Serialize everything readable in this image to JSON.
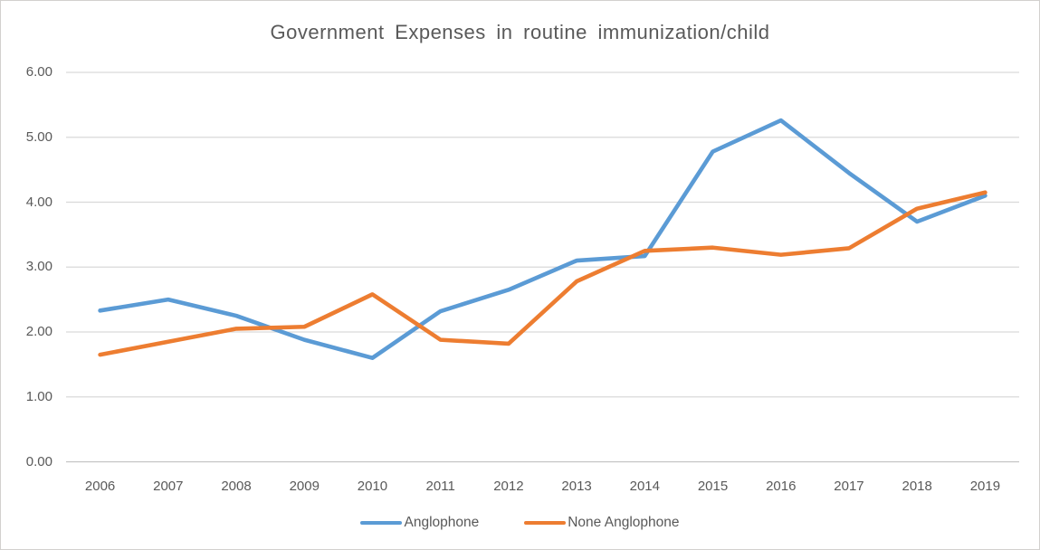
{
  "chart_data": {
    "type": "line",
    "title": "Government Expenses in routine immunization/child",
    "x": [
      "2006",
      "2007",
      "2008",
      "2009",
      "2010",
      "2011",
      "2012",
      "2013",
      "2014",
      "2015",
      "2016",
      "2017",
      "2018",
      "2019"
    ],
    "series": [
      {
        "name": "Anglophone",
        "color": "#5B9BD5",
        "values": [
          2.33,
          2.5,
          2.25,
          1.88,
          1.6,
          2.32,
          2.65,
          3.1,
          3.17,
          4.78,
          5.26,
          4.45,
          3.7,
          4.1
        ]
      },
      {
        "name": "None Anglophone",
        "color": "#ED7D31",
        "values": [
          1.65,
          1.85,
          2.05,
          2.08,
          2.58,
          1.88,
          1.82,
          2.78,
          3.25,
          3.3,
          3.19,
          3.29,
          3.9,
          4.15
        ]
      }
    ],
    "ylim": [
      0,
      6
    ],
    "y_ticks": [
      "0.00",
      "1.00",
      "2.00",
      "3.00",
      "4.00",
      "5.00",
      "6.00"
    ],
    "grid": true,
    "legend_position": "bottom",
    "gridline_color": "#D9D9D9",
    "axis_line_color": "#C3C3C3",
    "text_color": "#595959"
  }
}
